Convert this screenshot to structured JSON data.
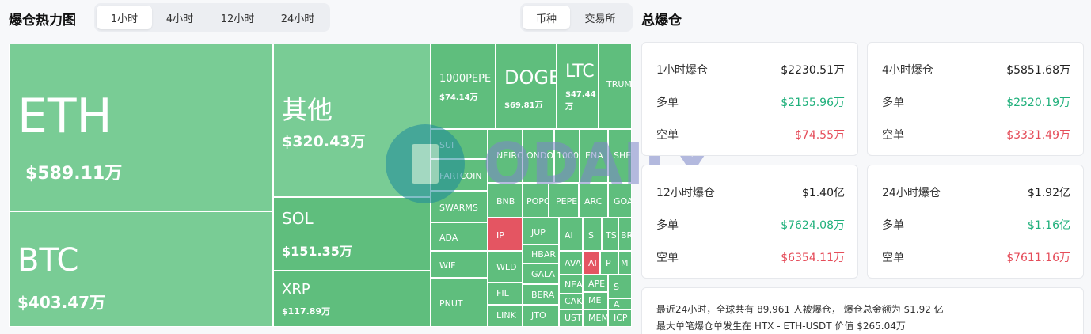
{
  "left_title": "爆仓热力图",
  "time_tabs": [
    {
      "label": "1小时",
      "active": true
    },
    {
      "label": "4小时",
      "active": false
    },
    {
      "label": "12小时",
      "active": false
    },
    {
      "label": "24小时",
      "active": false
    }
  ],
  "group_tabs": [
    {
      "label": "币种",
      "active": true
    },
    {
      "label": "交易所",
      "active": false
    }
  ],
  "right_title": "总爆仓",
  "colors": {
    "long": "#1fb07b",
    "short": "#e54d5a",
    "tile_green": "#5fbe7d",
    "tile_light": "#79cc95",
    "tile_red": "#e45562"
  },
  "heatmap": {
    "tiles": [
      {
        "name": "ETH",
        "value": "$589.11万",
        "color": "light"
      },
      {
        "name": "BTC",
        "value": "$403.47万",
        "color": "light"
      },
      {
        "name": "其他",
        "value": "$320.43万",
        "color": "light"
      },
      {
        "name": "SOL",
        "value": "$151.35万",
        "color": "green"
      },
      {
        "name": "XRP",
        "value": "$117.89万",
        "color": "green"
      },
      {
        "name": "1000PEPE",
        "value": "$74.14万",
        "color": "green"
      },
      {
        "name": "DOGE",
        "value": "$69.81万",
        "color": "green"
      },
      {
        "name": "LTC",
        "value": "$47.44万",
        "color": "green"
      },
      {
        "name": "TRUMP",
        "value": "",
        "color": "green"
      },
      {
        "name": "SUI",
        "value": "",
        "color": "green"
      },
      {
        "name": "FARTCOIN",
        "value": "",
        "color": "green"
      },
      {
        "name": "SWARMS",
        "value": "",
        "color": "green"
      },
      {
        "name": "ADA",
        "value": "",
        "color": "green"
      },
      {
        "name": "WIF",
        "value": "",
        "color": "green"
      },
      {
        "name": "PNUT",
        "value": "",
        "color": "green"
      },
      {
        "name": "NEIRO",
        "value": "",
        "color": "green"
      },
      {
        "name": "ONDO",
        "value": "",
        "color": "green"
      },
      {
        "name": "1000",
        "value": "",
        "color": "green"
      },
      {
        "name": "ENA",
        "value": "",
        "color": "green"
      },
      {
        "name": "SHE",
        "value": "",
        "color": "green"
      },
      {
        "name": "BNB",
        "value": "",
        "color": "green"
      },
      {
        "name": "POPC",
        "value": "",
        "color": "green"
      },
      {
        "name": "PEPE",
        "value": "",
        "color": "green"
      },
      {
        "name": "ARC",
        "value": "",
        "color": "green"
      },
      {
        "name": "GOA",
        "value": "",
        "color": "green"
      },
      {
        "name": "IP",
        "value": "",
        "color": "red"
      },
      {
        "name": "JUP",
        "value": "",
        "color": "green"
      },
      {
        "name": "AI",
        "value": "",
        "color": "green"
      },
      {
        "name": "S",
        "value": "",
        "color": "green"
      },
      {
        "name": "TS",
        "value": "",
        "color": "green"
      },
      {
        "name": "BR",
        "value": "",
        "color": "green"
      },
      {
        "name": "WLD",
        "value": "",
        "color": "green"
      },
      {
        "name": "HBAR",
        "value": "",
        "color": "green"
      },
      {
        "name": "AVA",
        "value": "",
        "color": "green"
      },
      {
        "name": "AI",
        "value": "",
        "color": "red"
      },
      {
        "name": "P",
        "value": "",
        "color": "green"
      },
      {
        "name": "M",
        "value": "",
        "color": "green"
      },
      {
        "name": "GALA",
        "value": "",
        "color": "green"
      },
      {
        "name": "NEA",
        "value": "",
        "color": "green"
      },
      {
        "name": "APE",
        "value": "",
        "color": "green"
      },
      {
        "name": "S",
        "value": "",
        "color": "green"
      },
      {
        "name": "FIL",
        "value": "",
        "color": "green"
      },
      {
        "name": "BERA",
        "value": "",
        "color": "green"
      },
      {
        "name": "CAK",
        "value": "",
        "color": "green"
      },
      {
        "name": "ME",
        "value": "",
        "color": "green"
      },
      {
        "name": "A",
        "value": "",
        "color": "green"
      },
      {
        "name": "LINK",
        "value": "",
        "color": "green"
      },
      {
        "name": "JTO",
        "value": "",
        "color": "green"
      },
      {
        "name": "UST",
        "value": "",
        "color": "green"
      },
      {
        "name": "MEM",
        "value": "",
        "color": "green"
      },
      {
        "name": "ICP",
        "value": "",
        "color": "green"
      }
    ]
  },
  "watermark_text": "ODAILY",
  "cards": [
    {
      "period": "1小时爆仓",
      "total": "$2230.51万",
      "long_label": "多单",
      "long": "$2155.96万",
      "short_label": "空单",
      "short": "$74.55万"
    },
    {
      "period": "4小时爆仓",
      "total": "$5851.68万",
      "long_label": "多单",
      "long": "$2520.19万",
      "short_label": "空单",
      "short": "$3331.49万"
    },
    {
      "period": "12小时爆仓",
      "total": "$1.40亿",
      "long_label": "多单",
      "long": "$7624.08万",
      "short_label": "空单",
      "short": "$6354.11万"
    },
    {
      "period": "24小时爆仓",
      "total": "$1.92亿",
      "long_label": "多单",
      "long": "$1.16亿",
      "short_label": "空单",
      "short": "$7611.16万"
    }
  ],
  "summary": {
    "line1": "最近24小时，全球共有 89,961 人被爆仓， 爆仓总金额为 $1.92 亿",
    "line2": "最大单笔爆仓单发生在 HTX - ETH-USDT 价值 $265.04万"
  }
}
